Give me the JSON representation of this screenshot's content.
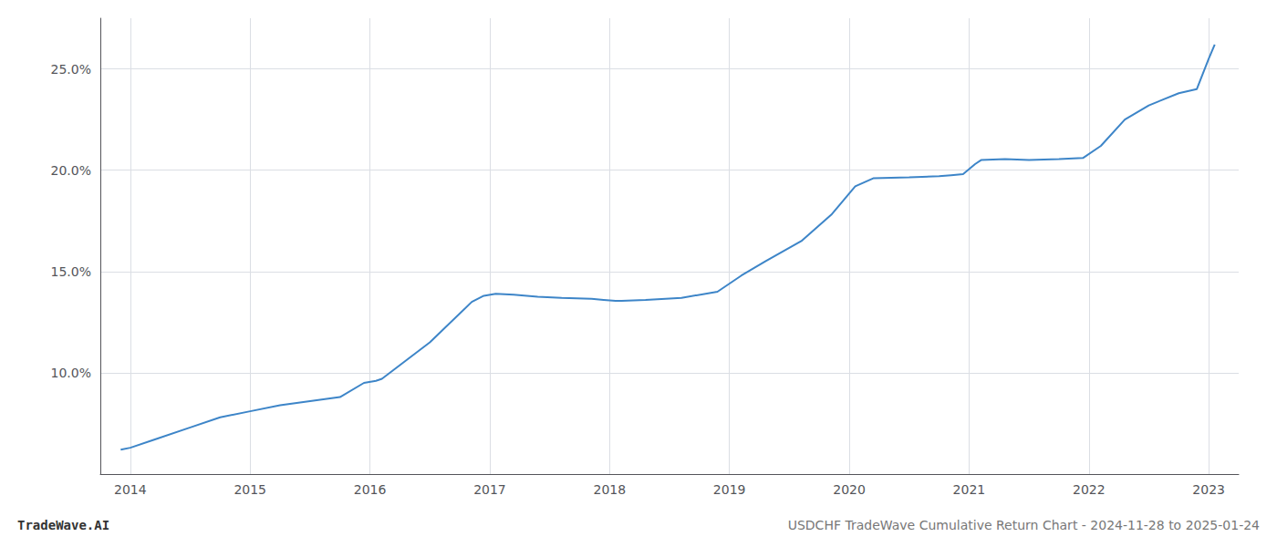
{
  "chart_data": {
    "type": "line",
    "title": "USDCHF TradeWave Cumulative Return Chart - 2024-11-28 to 2025-01-24",
    "annotations": [
      "TradeWave.AI"
    ],
    "color": "#3d85c8",
    "x": [
      2013.92,
      2014.0,
      2014.2,
      2014.5,
      2014.75,
      2015.0,
      2015.25,
      2015.5,
      2015.75,
      2015.95,
      2016.05,
      2016.1,
      2016.5,
      2016.85,
      2016.95,
      2017.05,
      2017.2,
      2017.4,
      2017.6,
      2017.85,
      2017.95,
      2018.05,
      2018.1,
      2018.3,
      2018.6,
      2018.9,
      2019.1,
      2019.3,
      2019.6,
      2019.85,
      2020.05,
      2020.2,
      2020.5,
      2020.75,
      2020.85,
      2020.95,
      2021.05,
      2021.1,
      2021.3,
      2021.5,
      2021.75,
      2021.95,
      2022.1,
      2022.3,
      2022.5,
      2022.75,
      2022.9,
      2023.0,
      2023.05
    ],
    "values": [
      6.2,
      6.3,
      6.7,
      7.3,
      7.8,
      8.1,
      8.4,
      8.6,
      8.8,
      9.5,
      9.6,
      9.7,
      11.5,
      13.5,
      13.8,
      13.9,
      13.85,
      13.75,
      13.7,
      13.65,
      13.6,
      13.55,
      13.55,
      13.6,
      13.7,
      14.0,
      14.8,
      15.5,
      16.5,
      17.8,
      19.2,
      19.6,
      19.65,
      19.7,
      19.75,
      19.8,
      20.3,
      20.5,
      20.55,
      20.5,
      20.55,
      20.6,
      21.2,
      22.5,
      23.2,
      23.8,
      24.0,
      25.5,
      26.2
    ],
    "xlim": [
      2013.75,
      2023.25
    ],
    "xticks": [
      2014,
      2015,
      2016,
      2017,
      2018,
      2019,
      2020,
      2021,
      2022,
      2023
    ],
    "ylim": [
      5.0,
      27.5
    ],
    "yticks": [
      {
        "value": 10.0,
        "label": "10.0%"
      },
      {
        "value": 15.0,
        "label": "15.0%"
      },
      {
        "value": 20.0,
        "label": "20.0%"
      },
      {
        "value": 25.0,
        "label": "25.0%"
      }
    ],
    "grid": true
  }
}
